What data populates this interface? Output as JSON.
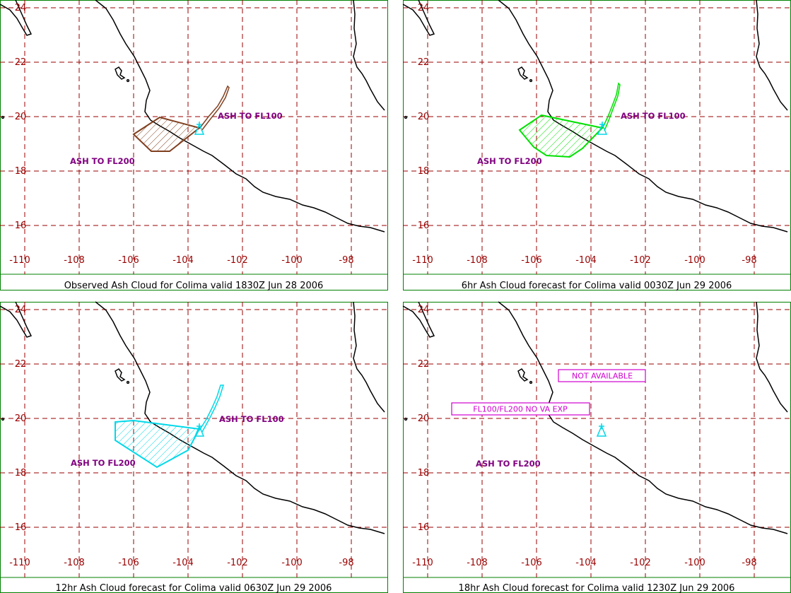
{
  "axes": {
    "x_ticks": [
      "-110",
      "-108",
      "-106",
      "-104",
      "-102",
      "-100",
      "-98"
    ],
    "y_ticks": [
      "24",
      "22",
      "20",
      "18",
      "16"
    ]
  },
  "colors": {
    "frame": "#008000",
    "grid": "#990000",
    "coast": "#000000",
    "label": "#800080",
    "observed": "#804020",
    "hr6": "#00e000",
    "hr12": "#00d8e8",
    "hr18": "#d000d0"
  },
  "panels": [
    {
      "id": "observed",
      "caption": "Observed Ash Cloud for Colima valid 1830Z Jun 28 2006",
      "label_fl100": "ASH TO FL100",
      "label_fl200": "ASH TO FL200",
      "color_key": "observed"
    },
    {
      "id": "hr6",
      "caption": "6hr Ash Cloud forecast for Colima valid 0030Z Jun 29 2006",
      "label_fl100": "ASH TO FL100",
      "label_fl200": "ASH TO FL200",
      "color_key": "hr6"
    },
    {
      "id": "hr12",
      "caption": "12hr Ash Cloud forecast for Colima valid 0630Z Jun 29 2006",
      "label_fl100": "ASH TO FL100",
      "label_fl200": "ASH TO FL200",
      "color_key": "hr12"
    },
    {
      "id": "hr18",
      "caption": "18hr Ash Cloud forecast for Colima valid 1230Z Jun 29 2006",
      "label_fl200": "ASH TO FL200",
      "box_not_available": "NOT AVAILABLE",
      "box_no_va": "FL100/FL200 NO VA EXP",
      "color_key": "hr12"
    }
  ]
}
